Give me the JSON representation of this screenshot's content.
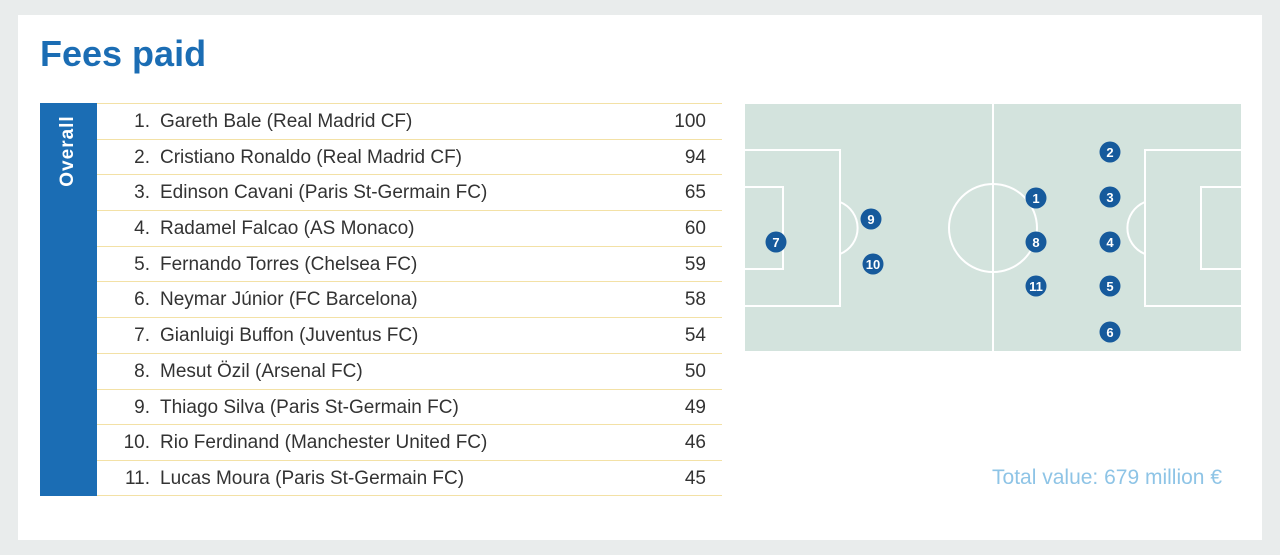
{
  "title": "Fees paid",
  "side_label": "Overall",
  "table": {
    "rows": [
      {
        "rank": "1.",
        "name": "Gareth Bale (Real Madrid CF)",
        "fee": 100
      },
      {
        "rank": "2.",
        "name": "Cristiano Ronaldo (Real Madrid CF)",
        "fee": 94
      },
      {
        "rank": "3.",
        "name": "Edinson Cavani (Paris St-Germain FC)",
        "fee": 65
      },
      {
        "rank": "4.",
        "name": "Radamel Falcao (AS Monaco)",
        "fee": 60
      },
      {
        "rank": "5.",
        "name": "Fernando Torres (Chelsea FC)",
        "fee": 59
      },
      {
        "rank": "6.",
        "name": "Neymar Júnior (FC Barcelona)",
        "fee": 58
      },
      {
        "rank": "7.",
        "name": "Gianluigi Buffon (Juventus FC)",
        "fee": 54
      },
      {
        "rank": "8.",
        "name": "Mesut Özil (Arsenal FC)",
        "fee": 50
      },
      {
        "rank": "9.",
        "name": "Thiago Silva (Paris St-Germain FC)",
        "fee": 49
      },
      {
        "rank": "10.",
        "name": "Rio Ferdinand (Manchester United FC)",
        "fee": 46
      },
      {
        "rank": "11.",
        "name": "Lucas Moura (Paris St-Germain FC)",
        "fee": 45
      }
    ]
  },
  "pitch": {
    "markers": [
      "1",
      "2",
      "3",
      "4",
      "5",
      "6",
      "7",
      "8",
      "9",
      "10",
      "11"
    ]
  },
  "total": "Total value: 679 million €"
}
